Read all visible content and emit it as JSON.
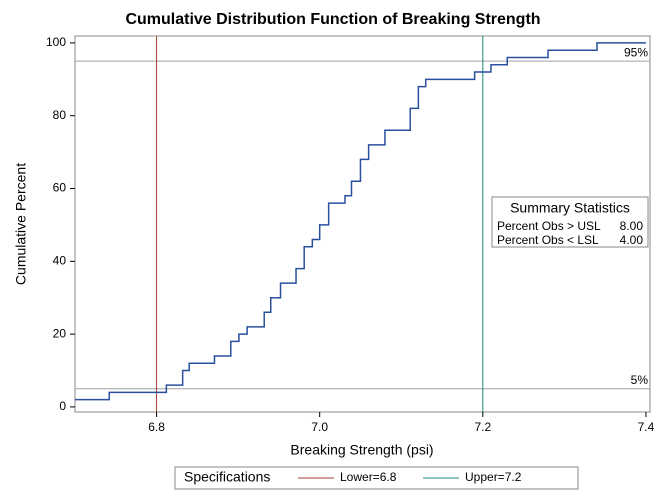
{
  "chart_data": {
    "type": "step",
    "title": "Cumulative Distribution Function of Breaking Strength",
    "x_label": "Breaking Strength (psi)",
    "y_label": "Cumulative Percent",
    "x": [
      6.7,
      6.742,
      6.812,
      6.832,
      6.84,
      6.871,
      6.891,
      6.901,
      6.911,
      6.932,
      6.94,
      6.952,
      6.971,
      6.981,
      6.991,
      7.0,
      7.011,
      7.031,
      7.039,
      7.05,
      7.06,
      7.08,
      7.111,
      7.121,
      7.13,
      7.19,
      7.21,
      7.23,
      7.28,
      7.34
    ],
    "values": [
      2,
      4,
      6,
      10,
      12,
      14,
      18,
      20,
      22,
      26,
      30,
      34,
      38,
      44,
      46,
      50,
      56,
      58,
      62,
      68,
      72,
      76,
      82,
      88,
      90,
      92,
      94,
      96,
      98,
      100
    ],
    "color": "#2a4f9e",
    "xlim": [
      6.7,
      7.405
    ],
    "ylim": [
      -1.4,
      101.9
    ],
    "xticks": [
      6.8,
      {
        "value": 7.0,
        "label": "7.0"
      },
      7.2,
      7.4
    ],
    "yticks": [
      0,
      20,
      40,
      60,
      80,
      100
    ],
    "ref_lines": [
      {
        "value": 95,
        "label": "95%"
      },
      {
        "value": 5,
        "label": "5%"
      }
    ],
    "ref_color": "#a0a0a0",
    "spec_lines": [
      {
        "value": 6.8,
        "label": "Lower=6.8",
        "color": "#a5402f"
      },
      {
        "value": 7.2,
        "label": "Upper=7.2",
        "color": "#1b8a78"
      }
    ],
    "legend_title": "Specifications",
    "inset": {
      "title": "Summary Statistics",
      "rows": [
        [
          "Percent Obs > USL",
          "8.00"
        ],
        [
          "Percent Obs < LSL",
          "4.00"
        ]
      ]
    }
  }
}
